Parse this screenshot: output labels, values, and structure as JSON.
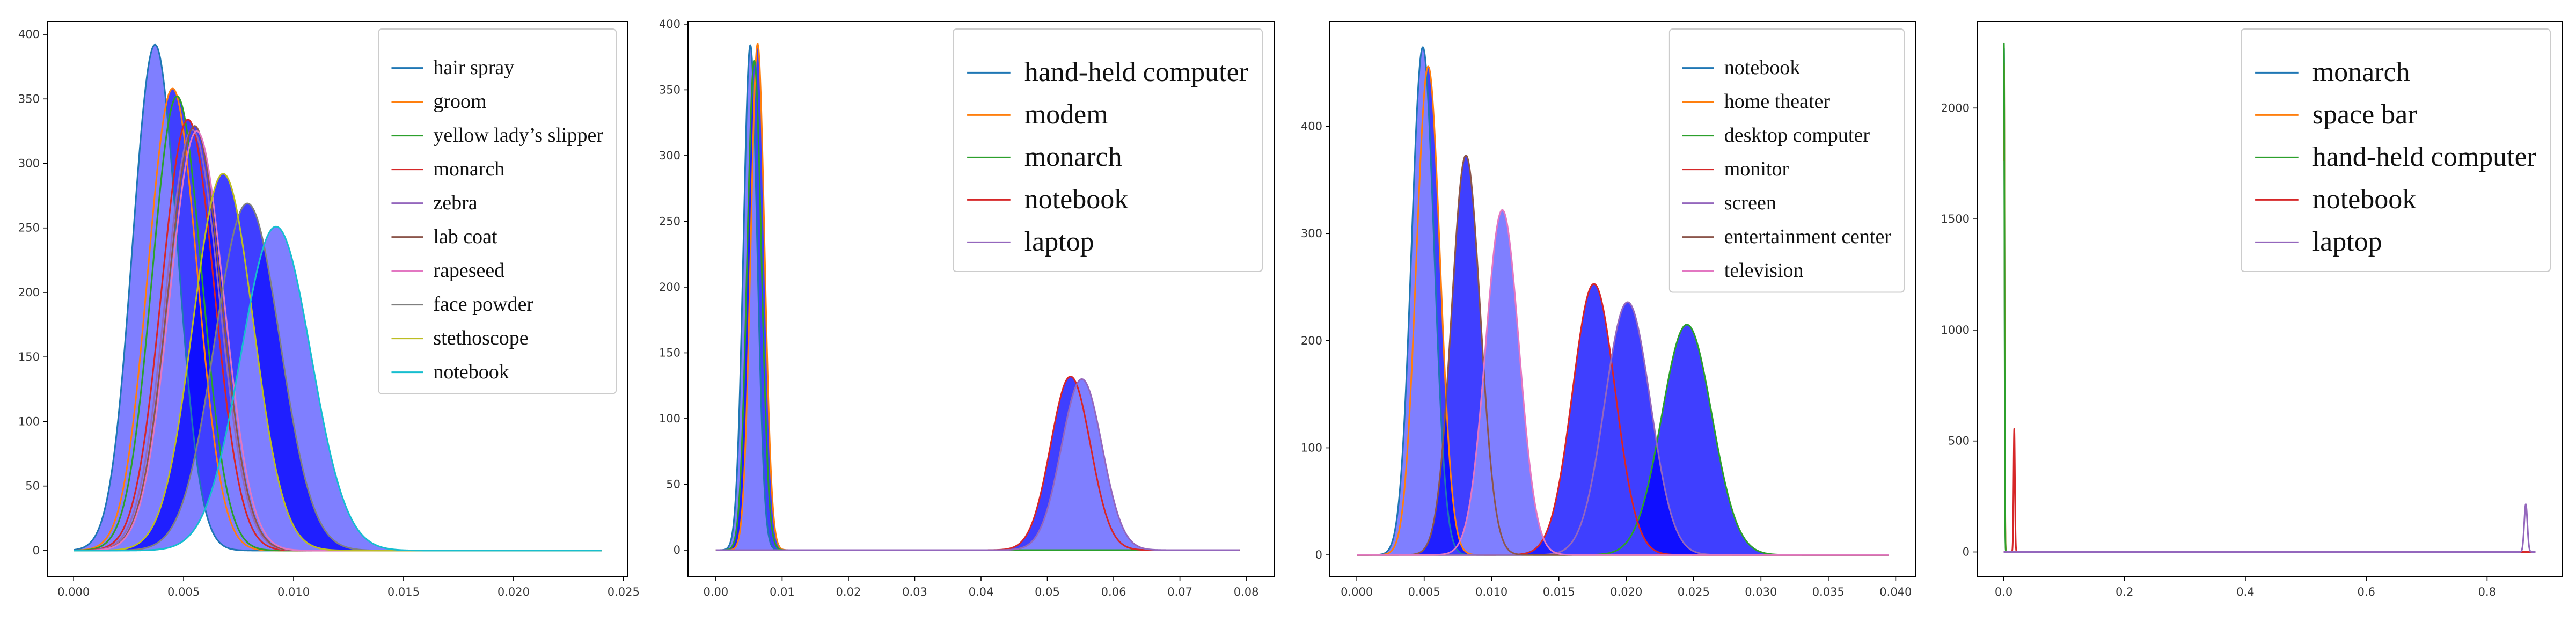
{
  "figure": {
    "background": "#ffffff",
    "colors": {
      "blue": "#1f77b4",
      "orange": "#ff7f0e",
      "green": "#2ca02c",
      "red": "#d62728",
      "purple": "#9467bd",
      "brown": "#8c564b",
      "pink": "#e377c2",
      "gray": "#7f7f7f",
      "olive": "#bcbd22",
      "cyan": "#17becf",
      "fill": "#0000ff"
    }
  },
  "chart_data": [
    {
      "type": "line",
      "title": "",
      "xlabel": "",
      "ylabel": "",
      "xlim": [
        -0.0012,
        0.0252
      ],
      "ylim": [
        -20,
        410
      ],
      "xticks": [
        0.0,
        0.005,
        0.01,
        0.015,
        0.02,
        0.025
      ],
      "xtick_labels": [
        "0.000",
        "0.005",
        "0.010",
        "0.015",
        "0.020",
        "0.025"
      ],
      "yticks": [
        0,
        50,
        100,
        150,
        200,
        250,
        300,
        350,
        400
      ],
      "ytick_labels": [
        "0",
        "50",
        "100",
        "150",
        "200",
        "250",
        "300",
        "350",
        "400"
      ],
      "x_domain": [
        0.0,
        0.024
      ],
      "legend_position": "top-right",
      "legend_size": "small",
      "grid": false,
      "fill_between_consecutive_series": true,
      "series": [
        {
          "name": "hair spray",
          "color": "#1f77b4",
          "peak_x": 0.0037,
          "peak_y": 392,
          "spread": 0.00102
        },
        {
          "name": "groom",
          "color": "#ff7f0e",
          "peak_x": 0.0045,
          "peak_y": 358,
          "spread": 0.00112
        },
        {
          "name": "yellow lady’s slipper",
          "color": "#2ca02c",
          "peak_x": 0.0047,
          "peak_y": 352,
          "spread": 0.00113
        },
        {
          "name": "monarch",
          "color": "#d62728",
          "peak_x": 0.0052,
          "peak_y": 334,
          "spread": 0.0012
        },
        {
          "name": "zebra",
          "color": "#9467bd",
          "peak_x": 0.0054,
          "peak_y": 326,
          "spread": 0.00122
        },
        {
          "name": "lab coat",
          "color": "#8c564b",
          "peak_x": 0.0055,
          "peak_y": 329,
          "spread": 0.00121
        },
        {
          "name": "rapeseed",
          "color": "#e377c2",
          "peak_x": 0.0056,
          "peak_y": 325,
          "spread": 0.00123
        },
        {
          "name": "face powder",
          "color": "#7f7f7f",
          "peak_x": 0.0079,
          "peak_y": 269,
          "spread": 0.00148
        },
        {
          "name": "stethoscope",
          "color": "#bcbd22",
          "peak_x": 0.0068,
          "peak_y": 292,
          "spread": 0.00137
        },
        {
          "name": "notebook",
          "color": "#17becf",
          "peak_x": 0.0092,
          "peak_y": 251,
          "spread": 0.00159
        }
      ]
    },
    {
      "type": "line",
      "title": "",
      "xlabel": "",
      "ylabel": "",
      "xlim": [
        -0.0042,
        0.0842
      ],
      "ylim": [
        -20,
        402
      ],
      "xticks": [
        0.0,
        0.01,
        0.02,
        0.03,
        0.04,
        0.05,
        0.06,
        0.07,
        0.08
      ],
      "xtick_labels": [
        "0.00",
        "0.01",
        "0.02",
        "0.03",
        "0.04",
        "0.05",
        "0.06",
        "0.07",
        "0.08"
      ],
      "yticks": [
        0,
        50,
        100,
        150,
        200,
        250,
        300,
        350,
        400
      ],
      "ytick_labels": [
        "0",
        "50",
        "100",
        "150",
        "200",
        "250",
        "300",
        "350",
        "400"
      ],
      "x_domain": [
        0.0,
        0.079
      ],
      "legend_position": "top-right",
      "legend_size": "large",
      "grid": false,
      "fill_between_consecutive_series": true,
      "series": [
        {
          "name": "hand-held computer",
          "color": "#1f77b4",
          "peak_x": 0.0052,
          "peak_y": 384,
          "spread": 0.00104
        },
        {
          "name": "modem",
          "color": "#ff7f0e",
          "peak_x": 0.0063,
          "peak_y": 385,
          "spread": 0.00104
        },
        {
          "name": "monarch",
          "color": "#2ca02c",
          "peak_x": 0.0058,
          "peak_y": 372,
          "spread": 0.00107
        },
        {
          "name": "notebook",
          "color": "#d62728",
          "peak_x": 0.0535,
          "peak_y": 132,
          "spread": 0.003
        },
        {
          "name": "laptop",
          "color": "#9467bd",
          "peak_x": 0.0552,
          "peak_y": 130,
          "spread": 0.00307
        }
      ]
    },
    {
      "type": "line",
      "title": "",
      "xlabel": "",
      "ylabel": "",
      "xlim": [
        -0.002,
        0.0415
      ],
      "ylim": [
        -20,
        498
      ],
      "xticks": [
        0.0,
        0.005,
        0.01,
        0.015,
        0.02,
        0.025,
        0.03,
        0.035,
        0.04
      ],
      "xtick_labels": [
        "0.000",
        "0.005",
        "0.010",
        "0.015",
        "0.020",
        "0.025",
        "0.030",
        "0.035",
        "0.040"
      ],
      "yticks": [
        0,
        100,
        200,
        300,
        400
      ],
      "ytick_labels": [
        "0",
        "100",
        "200",
        "300",
        "400"
      ],
      "x_domain": [
        0.0,
        0.0395
      ],
      "legend_position": "top-right",
      "legend_size": "small",
      "grid": false,
      "fill_between_consecutive_series": true,
      "series": [
        {
          "name": "notebook",
          "color": "#1f77b4",
          "peak_x": 0.0049,
          "peak_y": 474,
          "spread": 0.00084
        },
        {
          "name": "home theater",
          "color": "#ff7f0e",
          "peak_x": 0.0053,
          "peak_y": 456,
          "spread": 0.00088
        },
        {
          "name": "desktop computer",
          "color": "#2ca02c",
          "peak_x": 0.0245,
          "peak_y": 215,
          "spread": 0.00186
        },
        {
          "name": "monitor",
          "color": "#d62728",
          "peak_x": 0.0176,
          "peak_y": 253,
          "spread": 0.00158
        },
        {
          "name": "screen",
          "color": "#9467bd",
          "peak_x": 0.0201,
          "peak_y": 236,
          "spread": 0.00169
        },
        {
          "name": "entertainment center",
          "color": "#8c564b",
          "peak_x": 0.0081,
          "peak_y": 373,
          "spread": 0.00107
        },
        {
          "name": "television",
          "color": "#e377c2",
          "peak_x": 0.0108,
          "peak_y": 322,
          "spread": 0.00124
        }
      ]
    },
    {
      "type": "line",
      "title": "",
      "xlabel": "",
      "ylabel": "",
      "xlim": [
        -0.044,
        0.924
      ],
      "ylim": [
        -110,
        2390
      ],
      "xticks": [
        0.0,
        0.2,
        0.4,
        0.6,
        0.8
      ],
      "xtick_labels": [
        "0.0",
        "0.2",
        "0.4",
        "0.6",
        "0.8"
      ],
      "yticks": [
        0,
        500,
        1000,
        1500,
        2000
      ],
      "ytick_labels": [
        "0",
        "500",
        "1000",
        "1500",
        "2000"
      ],
      "x_domain": [
        0.0,
        0.88
      ],
      "legend_position": "top-right",
      "legend_size": "large",
      "grid": false,
      "fill_between_consecutive_series": false,
      "series": [
        {
          "name": "monarch",
          "color": "#1f77b4",
          "peak_x": 0.0005,
          "peak_y": 2270,
          "spread": 0.0009
        },
        {
          "name": "space bar",
          "color": "#ff7f0e",
          "peak_x": 0.0006,
          "peak_y": 2200,
          "spread": 0.0009
        },
        {
          "name": "hand-held computer",
          "color": "#2ca02c",
          "peak_x": 0.0004,
          "peak_y": 2290,
          "spread": 0.0009
        },
        {
          "name": "notebook",
          "color": "#d62728",
          "peak_x": 0.0175,
          "peak_y": 555,
          "spread": 0.0011
        },
        {
          "name": "laptop",
          "color": "#9467bd",
          "peak_x": 0.864,
          "peak_y": 215,
          "spread": 0.0026
        }
      ]
    }
  ]
}
